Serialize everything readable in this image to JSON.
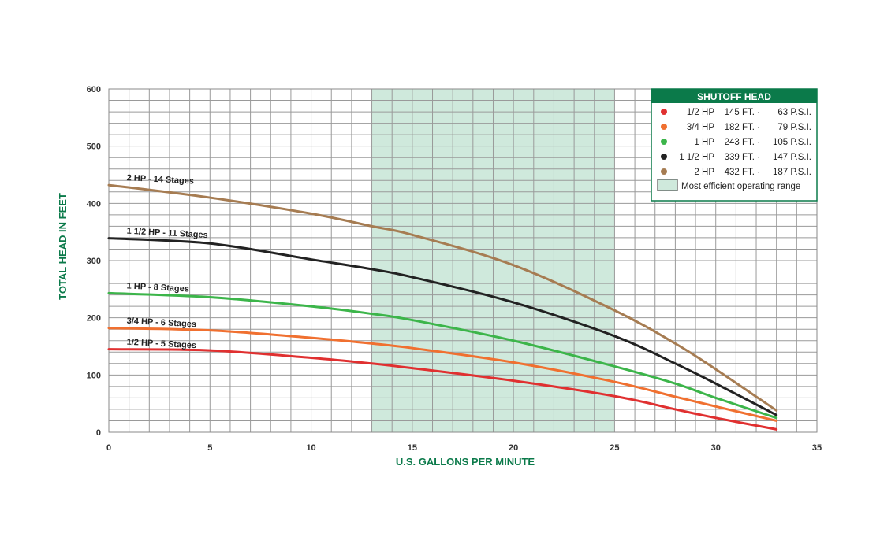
{
  "chart_data": {
    "type": "line",
    "xlabel": "U.S. GALLONS PER MINUTE",
    "ylabel": "TOTAL HEAD IN FEET",
    "xlim": [
      0,
      35
    ],
    "ylim": [
      0,
      600
    ],
    "x_ticks": [
      "0",
      "5",
      "10",
      "15",
      "20",
      "25",
      "30",
      "35"
    ],
    "y_ticks": [
      "0",
      "100",
      "200",
      "300",
      "400",
      "500",
      "600"
    ],
    "grid": true,
    "efficient_range": [
      13,
      25
    ],
    "series": [
      {
        "name": "1/2 HP - 5 Stages",
        "color": "#e03030",
        "points": [
          [
            0,
            145
          ],
          [
            5,
            143
          ],
          [
            10,
            130
          ],
          [
            13,
            120
          ],
          [
            15,
            112
          ],
          [
            20,
            90
          ],
          [
            25,
            63
          ],
          [
            28,
            40
          ],
          [
            30,
            25
          ],
          [
            33,
            5
          ]
        ]
      },
      {
        "name": "3/4 HP - 6 Stages",
        "color": "#f07030",
        "points": [
          [
            0,
            182
          ],
          [
            5,
            178
          ],
          [
            10,
            165
          ],
          [
            13,
            155
          ],
          [
            15,
            147
          ],
          [
            20,
            122
          ],
          [
            25,
            88
          ],
          [
            28,
            62
          ],
          [
            30,
            45
          ],
          [
            33,
            20
          ]
        ]
      },
      {
        "name": "1 HP - 8 Stages",
        "color": "#3cb54a",
        "points": [
          [
            0,
            243
          ],
          [
            5,
            236
          ],
          [
            10,
            220
          ],
          [
            13,
            207
          ],
          [
            15,
            196
          ],
          [
            20,
            160
          ],
          [
            25,
            115
          ],
          [
            28,
            85
          ],
          [
            30,
            60
          ],
          [
            33,
            25
          ]
        ]
      },
      {
        "name": "1 1/2 HP - 11 Stages",
        "color": "#222222",
        "points": [
          [
            0,
            339
          ],
          [
            5,
            330
          ],
          [
            10,
            302
          ],
          [
            13,
            285
          ],
          [
            15,
            271
          ],
          [
            20,
            227
          ],
          [
            25,
            168
          ],
          [
            28,
            120
          ],
          [
            30,
            85
          ],
          [
            33,
            30
          ]
        ]
      },
      {
        "name": "2 HP - 14 Stages",
        "color": "#a67c52",
        "points": [
          [
            0,
            432
          ],
          [
            5,
            410
          ],
          [
            10,
            382
          ],
          [
            13,
            360
          ],
          [
            15,
            345
          ],
          [
            20,
            292
          ],
          [
            25,
            213
          ],
          [
            28,
            155
          ],
          [
            30,
            110
          ],
          [
            33,
            38
          ]
        ]
      }
    ],
    "legend": {
      "position": "top-right",
      "title": "SHUTOFF HEAD",
      "entries": [
        {
          "hp": "1/2 HP",
          "feet": "145 FT. ·",
          "psi": "63 P.S.I.",
          "color": "#e03030"
        },
        {
          "hp": "3/4 HP",
          "feet": "182 FT. ·",
          "psi": "79 P.S.I.",
          "color": "#f07030"
        },
        {
          "hp": "1 HP",
          "feet": "243 FT. ·",
          "psi": "105 P.S.I.",
          "color": "#3cb54a"
        },
        {
          "hp": "1 1/2 HP",
          "feet": "339 FT. ·",
          "psi": "147 P.S.I.",
          "color": "#222222"
        },
        {
          "hp": "2 HP",
          "feet": "432 FT. ·",
          "psi": "187 P.S.I.",
          "color": "#a67c52"
        }
      ],
      "range_label": "Most efficient operating range",
      "range_color": "#cfe9dc",
      "header_color": "#0b7a4a"
    },
    "curve_labels": [
      {
        "text": "2 HP - 14 Stages",
        "x": 0.8,
        "y": 432
      },
      {
        "text": "1 1/2 HP - 11 Stages",
        "x": 0.8,
        "y": 339
      },
      {
        "text": "1 HP - 8 Stages",
        "x": 0.8,
        "y": 243
      },
      {
        "text": "3/4 HP - 6 Stages",
        "x": 0.8,
        "y": 182
      },
      {
        "text": "1/2 HP - 5 Stages",
        "x": 0.8,
        "y": 145
      }
    ]
  }
}
